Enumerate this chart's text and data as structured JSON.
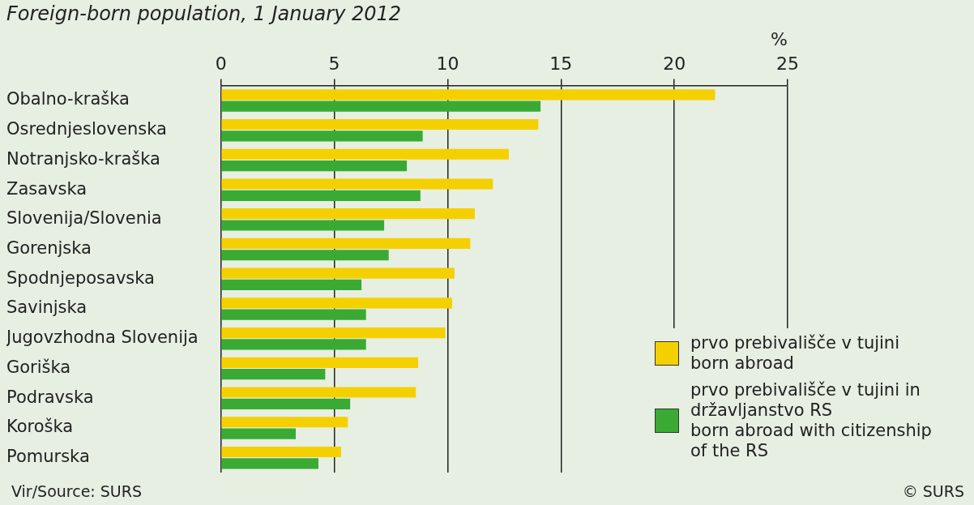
{
  "chart_data": {
    "type": "bar",
    "orientation": "horizontal",
    "title": "Foreign-born population, 1 January 2012",
    "xlabel": "%",
    "categories": [
      "Obalno-kraška",
      "Osrednjeslovenska",
      "Notranjsko-kraška",
      "Zasavska",
      "Slovenija/Slovenia",
      "Gorenjska",
      "Spodnjeposavska",
      "Savinjska",
      "Jugovzhodna Slovenija",
      "Goriška",
      "Podravska",
      "Koroška",
      "Pomurska"
    ],
    "series": [
      {
        "name": "prvo prebivališče v tujini\nborn abroad",
        "color": "#f5d000",
        "values": [
          21.8,
          14.0,
          12.7,
          12.0,
          11.2,
          11.0,
          10.3,
          10.2,
          9.9,
          8.7,
          8.6,
          5.6,
          5.3
        ]
      },
      {
        "name": "prvo prebivališče v tujini in državljanstvo RS\nborn abroad with citizenship of the RS",
        "color": "#3aaa35",
        "values": [
          14.1,
          8.9,
          8.2,
          8.8,
          7.2,
          7.4,
          6.2,
          6.4,
          6.4,
          4.6,
          5.7,
          3.3,
          4.3
        ]
      }
    ],
    "xlim": [
      0,
      25
    ],
    "xticks": [
      0,
      5,
      10,
      15,
      20,
      25
    ],
    "grid": "x",
    "legend": "bottom right",
    "annotations": [
      "Vir/Source: SURS",
      "© SURS"
    ]
  }
}
